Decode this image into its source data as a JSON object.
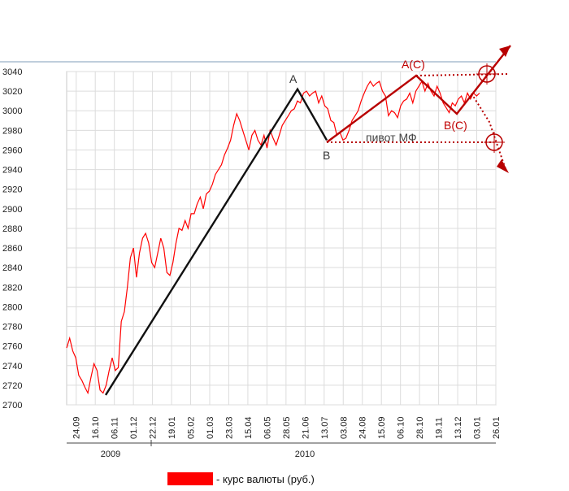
{
  "chart_data": {
    "type": "line",
    "title": "",
    "xlabel": "",
    "ylabel": "",
    "ylim": [
      2700,
      3040
    ],
    "yticks": [
      2700,
      2720,
      2740,
      2760,
      2780,
      2800,
      2820,
      2840,
      2860,
      2880,
      2900,
      2920,
      2940,
      2960,
      2980,
      3000,
      3020,
      3040
    ],
    "xtick_labels": [
      "24.09",
      "16.10",
      "06.11",
      "01.12",
      "22.12",
      "19.01",
      "05.02",
      "01.03",
      "23.03",
      "15.04",
      "06.05",
      "28.05",
      "21.06",
      "13.07",
      "03.08",
      "24.08",
      "15.09",
      "06.10",
      "28.10",
      "19.11",
      "13.12",
      "03.01",
      "26.01"
    ],
    "year_labels": [
      "2009",
      "2010"
    ],
    "series": [
      {
        "name": "курс валюты (руб.)",
        "color": "#ff0000",
        "values": [
          2758,
          2768,
          2755,
          2748,
          2730,
          2725,
          2718,
          2712,
          2728,
          2742,
          2735,
          2715,
          2712,
          2720,
          2735,
          2748,
          2735,
          2738,
          2785,
          2795,
          2820,
          2850,
          2860,
          2830,
          2855,
          2870,
          2875,
          2865,
          2845,
          2840,
          2855,
          2870,
          2860,
          2835,
          2832,
          2845,
          2865,
          2880,
          2878,
          2888,
          2880,
          2895,
          2895,
          2905,
          2912,
          2900,
          2915,
          2918,
          2925,
          2935,
          2940,
          2945,
          2955,
          2962,
          2970,
          2985,
          2997,
          2990,
          2980,
          2970,
          2960,
          2975,
          2980,
          2970,
          2965,
          2975,
          2962,
          2980,
          2972,
          2965,
          2975,
          2985,
          2990,
          2995,
          3000,
          3002,
          3010,
          3008,
          3018,
          3020,
          3015,
          3018,
          3020,
          3008,
          3015,
          3005,
          3002,
          2990,
          2988,
          2975,
          2978,
          2970,
          2972,
          2980,
          2990,
          2995,
          3000,
          3010,
          3018,
          3025,
          3030,
          3025,
          3028,
          3030,
          3020,
          3015,
          2995,
          3000,
          2998,
          2993,
          3005,
          3010,
          3012,
          3018,
          3008,
          3020,
          3025,
          3030,
          3020,
          3028,
          3020,
          3015,
          3025,
          3018,
          3008,
          3003,
          2998,
          3008,
          3005,
          3012,
          3015,
          3008,
          3018,
          3012,
          3018,
          3015,
          3018
        ]
      }
    ],
    "wave_points": {
      "start": 2710,
      "A": 3022,
      "B": 2970
    },
    "annotations": {
      "A": "A",
      "B": "B",
      "AC": "A(C)",
      "BC": "B(C)",
      "pivot": "пивот МФ"
    },
    "legend": {
      "label": "- курс валюты (руб.)",
      "color": "#ff0000",
      "position": "bottom"
    },
    "grid": true
  }
}
